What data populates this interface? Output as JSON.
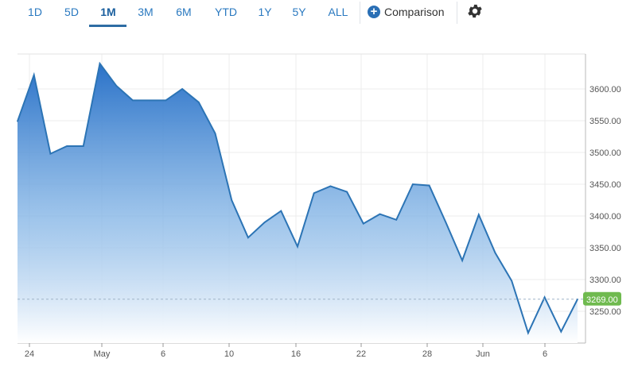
{
  "toolbar": {
    "ranges": [
      "1D",
      "5D",
      "1M",
      "3M",
      "6M",
      "YTD",
      "1Y",
      "5Y",
      "ALL"
    ],
    "active_range": "1M",
    "comparison_label": "Comparison",
    "comparison_icon": "plus-circle-icon",
    "settings_icon": "gear-icon"
  },
  "chart_data": {
    "type": "area",
    "title": "",
    "xlabel": "",
    "ylabel": "",
    "x_tick_labels": [
      "24",
      "May",
      "6",
      "10",
      "16",
      "22",
      "28",
      "Jun",
      "6"
    ],
    "y_tick_labels": [
      "3600.00",
      "3550.00",
      "3500.00",
      "3450.00",
      "3400.00",
      "3350.00",
      "3300.00",
      "3250.00"
    ],
    "ylim": [
      3228,
      3672
    ],
    "grid": true,
    "current_value": "3269.00",
    "current_value_color": "#6fba4f",
    "line_color": "#2c74b5",
    "fill_top_color": "#2a72c8",
    "fill_bottom_color": "#ffffff",
    "series": [
      {
        "values": [
          3549,
          3622,
          3498,
          3510,
          3510,
          3640,
          3605,
          3582,
          3582,
          3582,
          3600,
          3579,
          3530,
          3425,
          3366,
          3390,
          3408,
          3352,
          3436,
          3447,
          3438,
          3388,
          3403,
          3394,
          3450,
          3448,
          3390,
          3330,
          3402,
          3342,
          3298,
          3216,
          3272,
          3218,
          3269
        ]
      }
    ]
  }
}
